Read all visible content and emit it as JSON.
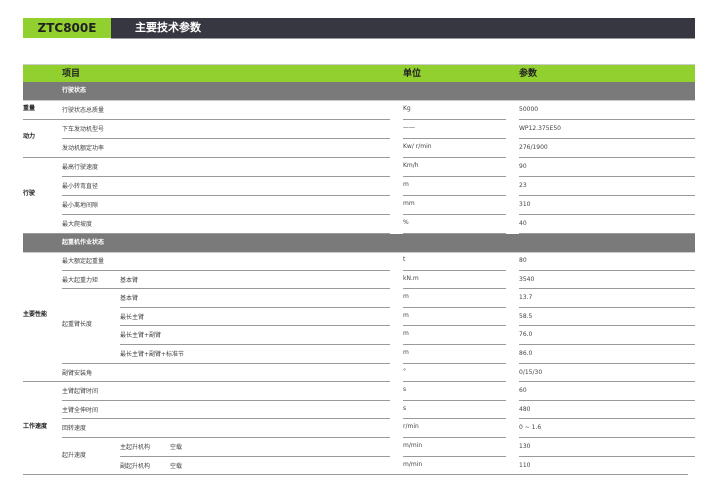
{
  "header": {
    "model": "ZTC800E",
    "title": "主要技术参数"
  },
  "columns": {
    "item": "项目",
    "unit": "单位",
    "value": "参数"
  },
  "sections": [
    {
      "title": "行驶状态",
      "groups": [
        {
          "label": "重量",
          "first": 0,
          "last": 0
        },
        {
          "label": "动力",
          "first": 1,
          "last": 2
        },
        {
          "label": "行驶",
          "first": 3,
          "last": 6
        }
      ],
      "subgroups": [],
      "rows": [
        {
          "item": "行驶状态总质量",
          "sub": "",
          "sub2": "",
          "unit": "Kg",
          "value": "50000"
        },
        {
          "item": "下车发动机型号",
          "sub": "",
          "sub2": "",
          "unit": "——",
          "value": "WP12.375E50"
        },
        {
          "item": "发动机额定功率",
          "sub": "",
          "sub2": "",
          "unit": "Kw/ r/min",
          "value": "276/1900"
        },
        {
          "item": "最高行驶速度",
          "sub": "",
          "sub2": "",
          "unit": "Km/h",
          "value": "90"
        },
        {
          "item": "最小转弯直径",
          "sub": "",
          "sub2": "",
          "unit": "m",
          "value": "23"
        },
        {
          "item": "最小离地间隙",
          "sub": "",
          "sub2": "",
          "unit": "mm",
          "value": "310"
        },
        {
          "item": "最大爬坡度",
          "sub": "",
          "sub2": "",
          "unit": "%",
          "value": "40"
        }
      ]
    },
    {
      "title": "起重机作业状态",
      "groups": [
        {
          "label": "主要性能",
          "first": 0,
          "last": 6
        },
        {
          "label": "工作速度",
          "first": 7,
          "last": 11
        }
      ],
      "subgroups": [
        {
          "label": "起重臂长度",
          "first": 2,
          "last": 5
        },
        {
          "label": "起升速度",
          "first": 10,
          "last": 11
        }
      ],
      "rows": [
        {
          "item": "最大额定起重量",
          "sub": "",
          "sub2": "",
          "unit": "t",
          "value": "80"
        },
        {
          "item": "最大起重力矩",
          "sub": "基本臂",
          "sub2": "",
          "unit": "kN.m",
          "value": "3540"
        },
        {
          "item": "",
          "sub": "基本臂",
          "sub2": "",
          "unit": "m",
          "value": "13.7"
        },
        {
          "item": "",
          "sub": "最长主臂",
          "sub2": "",
          "unit": "m",
          "value": "58.5"
        },
        {
          "item": "",
          "sub": "最长主臂+副臂",
          "sub2": "",
          "unit": "m",
          "value": "76.0"
        },
        {
          "item": "",
          "sub": "最长主臂+副臂+标准节",
          "sub2": "",
          "unit": "m",
          "value": "86.0"
        },
        {
          "item": "副臂安装角",
          "sub": "",
          "sub2": "",
          "unit": "°",
          "value": "0/15/30"
        },
        {
          "item": "主臂起臂时间",
          "sub": "",
          "sub2": "",
          "unit": "s",
          "value": "60"
        },
        {
          "item": "主臂全伸时间",
          "sub": "",
          "sub2": "",
          "unit": "s",
          "value": "480"
        },
        {
          "item": "回转速度",
          "sub": "",
          "sub2": "",
          "unit": "r/min",
          "value": "0 ~ 1.6"
        },
        {
          "item": "",
          "sub": "主起升机构",
          "sub2": "空载",
          "unit": "m/min",
          "value": "130"
        },
        {
          "item": "",
          "sub": "副起升机构",
          "sub2": "空载",
          "unit": "m/min",
          "value": "110"
        }
      ]
    }
  ]
}
